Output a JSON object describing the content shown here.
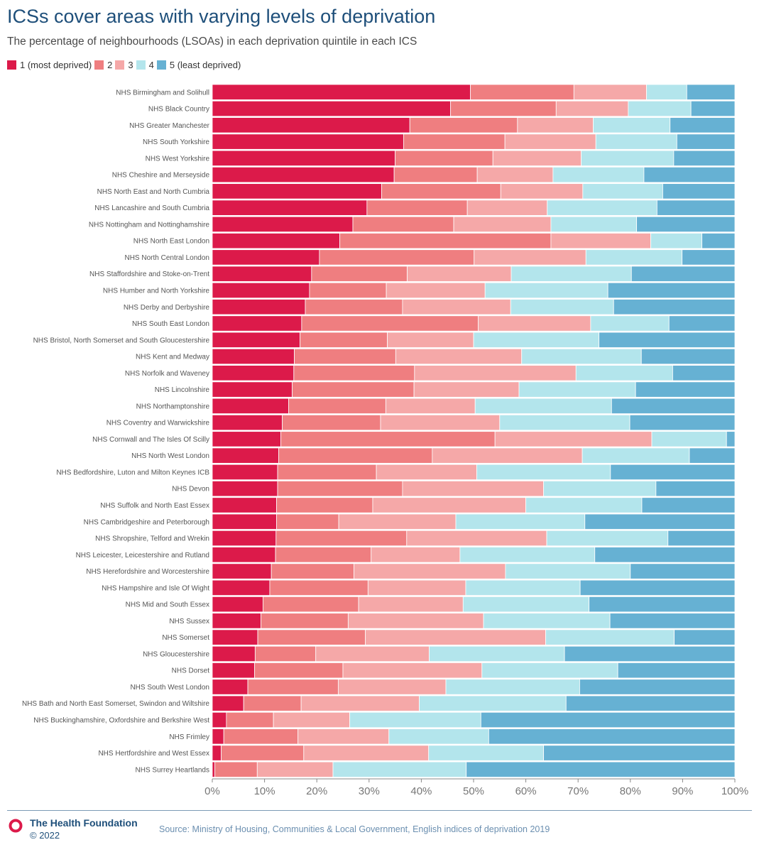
{
  "header": {
    "title": "ICSs cover areas with varying levels of deprivation",
    "subtitle": "The percentage of neighbourhoods (LSOAs) in each deprivation quintile in each ICS"
  },
  "footer": {
    "brand": "The Health Foundation",
    "copyright": "© 2022",
    "source": "Source: Ministry of Housing, Communities & Local Government, English indices of deprivation 2019"
  },
  "chart_data": {
    "type": "bar",
    "orientation": "horizontal",
    "stacked": true,
    "title": "ICSs cover areas with varying levels of deprivation",
    "subtitle": "The percentage of neighbourhoods (LSOAs) in each deprivation quintile in each ICS",
    "xlabel": "",
    "ylabel": "",
    "xlim": [
      0,
      100
    ],
    "x_ticks": [
      "0%",
      "10%",
      "20%",
      "30%",
      "40%",
      "50%",
      "60%",
      "70%",
      "80%",
      "90%",
      "100%"
    ],
    "legend_position": "top-left",
    "grid": false,
    "categories": [
      "NHS Birmingham and Solihull",
      "NHS Black Country",
      "NHS Greater Manchester",
      "NHS South Yorkshire",
      "NHS West Yorkshire",
      "NHS Cheshire and Merseyside",
      "NHS North East and North Cumbria",
      "NHS Lancashire and South Cumbria",
      "NHS Nottingham and Nottinghamshire",
      "NHS North East London",
      "NHS North Central London",
      "NHS Staffordshire and Stoke-on-Trent",
      "NHS Humber and North Yorkshire",
      "NHS Derby and Derbyshire",
      "NHS South East London",
      "NHS Bristol, North Somerset and South Gloucestershire",
      "NHS Kent and Medway",
      "NHS Norfolk and Waveney",
      "NHS Lincolnshire",
      "NHS Northamptonshire",
      "NHS Coventry and Warwickshire",
      "NHS Cornwall and The Isles Of Scilly",
      "NHS North West London",
      "NHS Bedfordshire, Luton and Milton Keynes ICB",
      "NHS Devon",
      "NHS Suffolk and North East Essex",
      "NHS Cambridgeshire and Peterborough",
      "NHS Shropshire, Telford and Wrekin",
      "NHS Leicester, Leicestershire and Rutland",
      "NHS Herefordshire and Worcestershire",
      "NHS Hampshire and Isle Of Wight",
      "NHS Mid and South Essex",
      "NHS Sussex",
      "NHS Somerset",
      "NHS Gloucestershire",
      "NHS Dorset",
      "NHS South West London",
      "NHS Bath and North East Somerset, Swindon and Wiltshire",
      "NHS Buckinghamshire, Oxfordshire and Berkshire West",
      "NHS Frimley",
      "NHS Hertfordshire and West Essex",
      "NHS Surrey Heartlands"
    ],
    "series": [
      {
        "name": "1 (most deprived)",
        "color": "#dc1a4a",
        "values": [
          49.4,
          45.6,
          37.8,
          36.6,
          35.0,
          34.8,
          32.4,
          29.6,
          26.9,
          24.4,
          20.5,
          19.0,
          18.6,
          17.8,
          17.1,
          16.8,
          15.7,
          15.6,
          15.3,
          14.6,
          13.4,
          13.1,
          12.7,
          12.5,
          12.5,
          12.3,
          12.3,
          12.2,
          12.1,
          11.3,
          11.0,
          9.7,
          9.3,
          8.7,
          8.2,
          8.1,
          6.8,
          6.0,
          2.7,
          2.2,
          1.7,
          0.5
        ]
      },
      {
        "name": "2",
        "color": "#ef7e80",
        "values": [
          19.8,
          20.2,
          20.6,
          19.4,
          18.7,
          15.9,
          22.8,
          19.2,
          19.3,
          40.4,
          29.6,
          18.3,
          14.7,
          18.6,
          33.8,
          16.7,
          19.4,
          23.1,
          23.3,
          18.6,
          18.8,
          41.0,
          29.4,
          18.9,
          23.9,
          18.4,
          11.9,
          25.0,
          18.3,
          15.8,
          18.8,
          18.3,
          16.7,
          20.6,
          11.6,
          16.9,
          17.3,
          11.0,
          9.0,
          14.2,
          15.8,
          8.1
        ]
      },
      {
        "name": "3",
        "color": "#f5a8a8",
        "values": [
          13.9,
          13.8,
          14.5,
          17.4,
          16.9,
          14.5,
          15.7,
          15.3,
          18.6,
          19.1,
          21.4,
          19.9,
          18.9,
          20.7,
          21.5,
          16.5,
          24.1,
          30.9,
          20.1,
          17.1,
          22.8,
          30.0,
          28.7,
          19.2,
          27.0,
          29.3,
          22.4,
          26.8,
          17.0,
          29.0,
          18.7,
          20.0,
          25.9,
          34.5,
          21.7,
          26.6,
          20.6,
          22.6,
          14.6,
          17.4,
          23.9,
          14.5
        ]
      },
      {
        "name": "4",
        "color": "#b3e5ec",
        "values": [
          7.7,
          12.0,
          14.7,
          15.5,
          17.7,
          17.4,
          15.3,
          21.0,
          16.4,
          9.8,
          18.4,
          23.0,
          23.5,
          19.7,
          15.0,
          24.0,
          22.9,
          18.5,
          22.3,
          26.1,
          24.9,
          14.3,
          20.5,
          25.6,
          21.5,
          22.2,
          24.7,
          23.2,
          25.8,
          23.9,
          21.9,
          24.1,
          24.2,
          24.6,
          25.9,
          26.0,
          25.6,
          28.1,
          25.1,
          19.1,
          22.0,
          25.5
        ]
      },
      {
        "name": "5 (least deprived)",
        "color": "#66b1d3",
        "values": [
          9.2,
          8.4,
          12.4,
          11.1,
          11.7,
          17.4,
          13.8,
          14.9,
          18.8,
          6.3,
          10.1,
          19.8,
          24.3,
          23.2,
          12.6,
          26.0,
          17.9,
          11.9,
          19.0,
          23.6,
          20.1,
          1.6,
          8.7,
          23.8,
          15.1,
          17.8,
          28.7,
          12.8,
          26.8,
          20.0,
          29.6,
          27.9,
          23.9,
          11.6,
          32.6,
          22.4,
          29.7,
          32.3,
          48.6,
          47.1,
          36.6,
          51.4
        ]
      }
    ]
  }
}
